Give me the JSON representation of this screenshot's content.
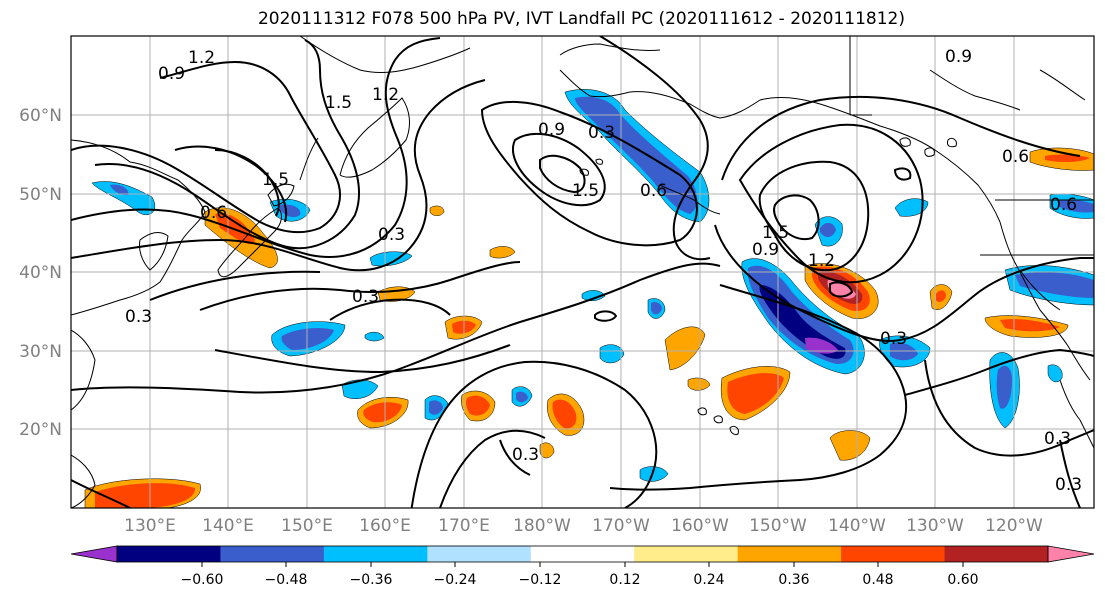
{
  "title": "2020111312 F078 500 hPa PV, IVT Landfall PC (2020111612 - 2020111812)",
  "lat_labels": [
    "60°N",
    "50°N",
    "40°N",
    "30°N",
    "20°N"
  ],
  "lon_labels": [
    "130°E",
    "140°E",
    "150°E",
    "160°E",
    "170°E",
    "180°W",
    "170°W",
    "160°W",
    "150°W",
    "140°W",
    "130°W",
    "120°W"
  ],
  "colorbar": {
    "colors": [
      "#9932cc",
      "#000080",
      "#3a5fcd",
      "#00bfff",
      "#b0e2ff",
      "#ffffff",
      "#ffec8b",
      "#ffa500",
      "#ff4500",
      "#b22222",
      "#ff82ab"
    ],
    "tick_labels": [
      "−0.60",
      "−0.48",
      "−0.36",
      "−0.24",
      "−0.12",
      "0.12",
      "0.24",
      "0.36",
      "0.48",
      "0.60"
    ]
  },
  "contour_labels": [
    "1.2",
    "0.9",
    "1.5",
    "1.2",
    "0.3",
    "1.5",
    "0.6",
    "0.3",
    "0.3",
    "0.9",
    "1.5",
    "0.6",
    "0.3",
    "0.9",
    "1.5",
    "1.2",
    "0.9",
    "0.6",
    "0.6",
    "0.3",
    "0.3",
    "0.3",
    "0.3"
  ],
  "colors": {
    "contour": "#000000",
    "coast": "#000000",
    "grid": "#b0b0b0"
  }
}
